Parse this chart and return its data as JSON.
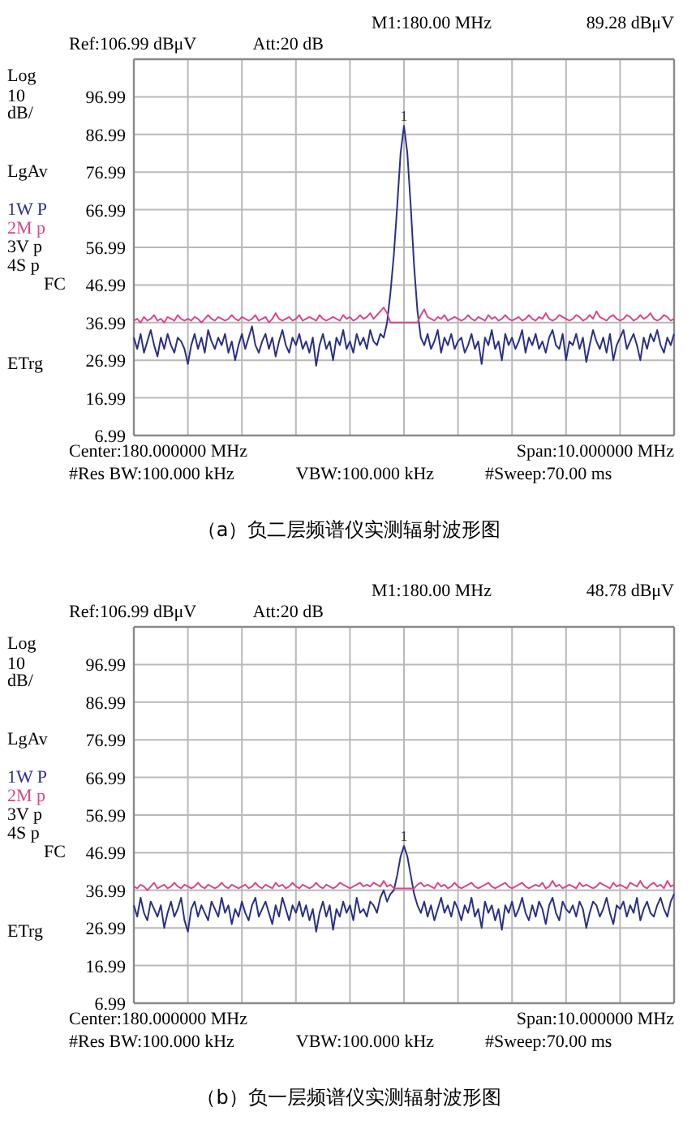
{
  "chart_data": [
    {
      "type": "line",
      "title": "（a）负二层频谱仪实测辐射波形图",
      "categories": [
        null,
        null,
        null,
        null,
        null,
        null,
        null,
        null,
        null,
        null,
        null,
        null,
        null,
        null,
        null,
        null,
        null,
        null,
        null,
        null,
        null,
        null,
        null,
        null,
        null,
        null,
        null,
        null,
        null,
        null,
        null,
        null,
        null,
        null,
        null,
        null,
        null,
        null,
        null,
        null,
        null,
        null,
        null,
        null,
        null,
        null,
        null,
        null,
        null,
        null,
        null,
        null,
        null,
        null,
        null,
        null,
        null,
        null,
        null,
        null,
        null,
        null,
        null,
        null,
        null,
        null,
        null,
        null,
        null,
        null,
        null,
        null,
        null,
        null,
        null,
        null,
        null,
        null,
        null,
        null,
        null,
        null,
        null,
        null,
        null,
        null,
        null,
        null,
        null,
        null,
        null,
        null,
        null,
        null,
        null,
        null,
        null,
        null,
        null,
        null,
        null,
        null,
        null,
        null,
        null,
        null,
        null,
        null,
        null,
        null,
        null,
        null,
        null,
        null,
        null,
        null,
        null,
        null,
        null,
        null,
        null,
        null,
        null,
        null,
        null,
        null,
        null,
        null,
        null,
        null,
        null,
        null,
        null,
        null,
        null,
        null,
        null,
        null,
        null,
        null,
        null,
        null,
        null,
        null,
        null,
        null,
        null,
        null,
        null,
        null,
        null,
        null,
        null,
        null,
        null,
        null,
        null,
        null,
        null,
        null,
        null
      ],
      "series": [
        {
          "name": "1W P",
          "color": "#2b3086",
          "values": [
            33,
            30,
            34,
            29,
            32,
            35,
            31,
            28,
            33,
            30,
            34,
            31,
            29,
            33,
            32,
            30,
            26,
            31,
            34,
            30,
            33,
            29,
            35,
            32,
            30,
            33,
            31,
            34,
            29,
            32,
            27,
            31,
            34,
            30,
            33,
            36,
            31,
            29,
            32,
            34,
            30,
            33,
            28,
            32,
            35,
            31,
            29,
            33,
            31,
            34,
            30,
            32,
            29,
            33,
            25.5,
            31,
            34,
            30,
            32,
            27,
            33,
            31,
            35,
            30,
            32,
            29,
            34,
            31,
            33,
            30,
            35,
            32,
            31,
            34,
            33,
            37,
            45,
            55,
            68,
            82,
            89.28,
            82,
            68,
            52,
            40,
            33,
            31,
            34,
            30,
            32,
            35,
            29,
            33,
            31,
            34,
            30,
            32,
            33,
            29,
            31,
            34,
            30,
            32,
            26,
            33,
            31,
            35,
            30,
            32,
            27,
            34,
            31,
            33,
            30,
            32,
            35,
            29,
            33,
            31,
            34,
            30,
            32,
            29,
            33,
            35,
            31,
            30,
            34,
            27,
            32,
            31,
            34,
            30,
            33,
            26.5,
            31,
            35,
            32,
            30,
            33,
            29,
            34,
            27,
            31,
            33,
            35,
            30,
            32,
            34,
            31,
            27,
            33,
            30,
            34,
            32,
            35,
            31,
            29,
            33,
            31,
            34
          ]
        },
        {
          "name": "2M p",
          "color": "#d8478c",
          "values": [
            37.5,
            38,
            37,
            38.5,
            37.5,
            38,
            39,
            37.5,
            38,
            37,
            38.5,
            38,
            37.5,
            39,
            38,
            37.5,
            38,
            37.5,
            38.5,
            38,
            37,
            38,
            39,
            38,
            37.5,
            38.5,
            38,
            37.5,
            38,
            39,
            38,
            37.5,
            38.5,
            38,
            37.5,
            38,
            39,
            37.5,
            38,
            38.5,
            37,
            38,
            39.5,
            38,
            37.5,
            38,
            38.5,
            37.5,
            38,
            39,
            37.5,
            38,
            38.5,
            38,
            37.5,
            39,
            38,
            37.5,
            38,
            38.5,
            38,
            37.5,
            39,
            38,
            38.5,
            37.5,
            38,
            39,
            38,
            38.5,
            39.5,
            38,
            39,
            40,
            41,
            39.5,
            37,
            37,
            37,
            37,
            37,
            37,
            37,
            37,
            37,
            39,
            40.5,
            38.5,
            38,
            37.5,
            38.5,
            38,
            39,
            37.5,
            38,
            38.5,
            38,
            37.5,
            38,
            39,
            38,
            37.5,
            38.5,
            38,
            37.5,
            39,
            38,
            38.5,
            37.5,
            38,
            39,
            38,
            37.5,
            38,
            38.5,
            37.5,
            38,
            39,
            38,
            37.5,
            38.5,
            38,
            39.5,
            38,
            37.5,
            38,
            39,
            38.5,
            38,
            37.5,
            38,
            39,
            38.5,
            37.5,
            38,
            39,
            38,
            40,
            38.5,
            38,
            37.5,
            38.5,
            39,
            38,
            37.5,
            38,
            39,
            38.5,
            37.5,
            38,
            39,
            38,
            38.5,
            39.5,
            38,
            37.5,
            38,
            39,
            38.5,
            37.5,
            38
          ]
        }
      ],
      "ylim": [
        6.99,
        106.99
      ],
      "yticks": [
        6.99,
        16.99,
        26.99,
        36.99,
        46.99,
        56.99,
        66.99,
        76.99,
        86.99,
        96.99
      ],
      "grid": true,
      "annotations": [
        "Ref:106.99 dBμV",
        "Att:20 dB",
        "M1:180.00 MHz",
        "89.28 dBμV",
        "Log",
        "10",
        "dB/",
        "LgAv",
        "3V p",
        "4S p",
        "FC",
        "ETrg",
        "Center:180.000000 MHz",
        "Span:10.000000 MHz",
        "#Res BW:100.000 kHz",
        "VBW:100.000 kHz",
        "#Sweep:70.00 ms",
        {
          "text": "1",
          "y": 89.28
        }
      ]
    },
    {
      "type": "line",
      "title": "（b）负一层频谱仪实测辐射波形图",
      "categories": [
        null,
        null,
        null,
        null,
        null,
        null,
        null,
        null,
        null,
        null,
        null,
        null,
        null,
        null,
        null,
        null,
        null,
        null,
        null,
        null,
        null,
        null,
        null,
        null,
        null,
        null,
        null,
        null,
        null,
        null,
        null,
        null,
        null,
        null,
        null,
        null,
        null,
        null,
        null,
        null,
        null,
        null,
        null,
        null,
        null,
        null,
        null,
        null,
        null,
        null,
        null,
        null,
        null,
        null,
        null,
        null,
        null,
        null,
        null,
        null,
        null,
        null,
        null,
        null,
        null,
        null,
        null,
        null,
        null,
        null,
        null,
        null,
        null,
        null,
        null,
        null,
        null,
        null,
        null,
        null,
        null,
        null,
        null,
        null,
        null,
        null,
        null,
        null,
        null,
        null,
        null,
        null,
        null,
        null,
        null,
        null,
        null,
        null,
        null,
        null,
        null,
        null,
        null,
        null,
        null,
        null,
        null,
        null,
        null,
        null,
        null,
        null,
        null,
        null,
        null,
        null,
        null,
        null,
        null,
        null,
        null,
        null,
        null,
        null,
        null,
        null,
        null,
        null,
        null,
        null,
        null,
        null,
        null,
        null,
        null,
        null,
        null,
        null,
        null,
        null,
        null,
        null,
        null,
        null,
        null,
        null,
        null,
        null,
        null,
        null,
        null,
        null,
        null,
        null,
        null,
        null,
        null,
        null,
        null,
        null,
        null
      ],
      "series": [
        {
          "name": "1W P",
          "color": "#2b3086",
          "values": [
            33,
            30,
            35,
            31,
            29,
            34,
            32,
            30,
            33,
            27,
            31,
            34,
            30,
            32,
            35,
            29,
            26,
            32,
            34,
            30,
            33,
            31,
            29,
            34,
            32,
            30,
            35,
            31,
            33,
            28,
            32,
            30,
            34,
            31,
            29,
            33,
            35,
            30,
            32,
            34,
            31,
            28,
            33,
            30,
            35,
            32,
            29,
            33,
            31,
            34,
            30,
            33,
            29,
            32,
            26,
            31,
            34,
            30,
            33,
            26.5,
            32,
            30,
            34,
            31,
            33,
            29,
            35,
            31,
            32,
            30,
            34,
            33,
            31,
            35,
            37,
            34,
            36,
            37,
            41,
            46,
            48.78,
            46,
            41,
            36,
            33,
            31,
            34,
            30,
            33,
            29,
            32,
            35,
            31,
            33,
            30,
            34,
            32,
            29,
            33,
            31,
            35,
            30,
            32,
            27,
            34,
            31,
            33,
            29,
            32,
            26.5,
            33,
            31,
            34,
            30,
            32,
            35,
            31,
            29,
            33,
            30,
            34,
            32,
            28,
            33,
            35,
            31,
            29,
            34,
            32,
            31,
            33,
            30,
            34,
            32,
            27,
            31,
            34,
            33,
            30,
            32,
            35,
            31,
            28,
            33,
            32,
            34,
            30,
            33,
            31,
            35,
            29,
            32,
            34,
            31,
            30,
            33,
            35,
            32,
            30,
            34,
            36
          ]
        },
        {
          "name": "2M p",
          "color": "#d8478c",
          "values": [
            38,
            37.5,
            38.5,
            38,
            37,
            38,
            39,
            37.5,
            38,
            38.5,
            37.5,
            38,
            39,
            38,
            37.5,
            38.5,
            38,
            37.5,
            38,
            39,
            38,
            37.5,
            38.5,
            38,
            37.5,
            38,
            39,
            38,
            37.5,
            38.5,
            38,
            37.5,
            38,
            38.5,
            37.5,
            38,
            39,
            38,
            37.5,
            38.5,
            38,
            37.5,
            39,
            38,
            38.5,
            37.5,
            38,
            39,
            38,
            37.5,
            38.5,
            38,
            37.5,
            38,
            39,
            38,
            37.5,
            38.5,
            38,
            37.5,
            38,
            39,
            38.5,
            38,
            37.5,
            38,
            38.5,
            39,
            38,
            38.5,
            38,
            39,
            38.5,
            38,
            39.5,
            38,
            38.5,
            37.5,
            37.5,
            37.5,
            37.5,
            37.5,
            37.5,
            37.5,
            38.5,
            39,
            38,
            38.5,
            38,
            37.5,
            39,
            38,
            38.5,
            37.5,
            38,
            39,
            38,
            37.5,
            38,
            38.5,
            39,
            38,
            37.5,
            38,
            38.5,
            39,
            38,
            37.5,
            38,
            38.5,
            39,
            38,
            37.5,
            38,
            38.5,
            39,
            38,
            37.5,
            38,
            38.5,
            38,
            39,
            37.5,
            38,
            39.5,
            38,
            38.5,
            37.5,
            38,
            38.5,
            38,
            37.5,
            39,
            38,
            38.5,
            38,
            37.5,
            38,
            39,
            38.5,
            38,
            37.5,
            39,
            38,
            38.5,
            38,
            37.5,
            39,
            38.5,
            38,
            39.5,
            38,
            37.5,
            38.5,
            39,
            38,
            38.5,
            37.5,
            39.5,
            38,
            38.5
          ]
        }
      ],
      "ylim": [
        6.99,
        106.99
      ],
      "yticks": [
        6.99,
        16.99,
        26.99,
        36.99,
        46.99,
        56.99,
        66.99,
        76.99,
        86.99,
        96.99
      ],
      "grid": true,
      "annotations": [
        "Ref:106.99 dBμV",
        "Att:20 dB",
        "M1:180.00 MHz",
        "48.78 dBμV",
        "Log",
        "10",
        "dB/",
        "LgAv",
        "3V p",
        "4S p",
        "FC",
        "ETrg",
        "Center:180.000000 MHz",
        "Span:10.000000 MHz",
        "#Res BW:100.000 kHz",
        "VBW:100.000 kHz",
        "#Sweep:70.00 ms",
        {
          "text": "1",
          "y": 48.78
        }
      ]
    }
  ]
}
